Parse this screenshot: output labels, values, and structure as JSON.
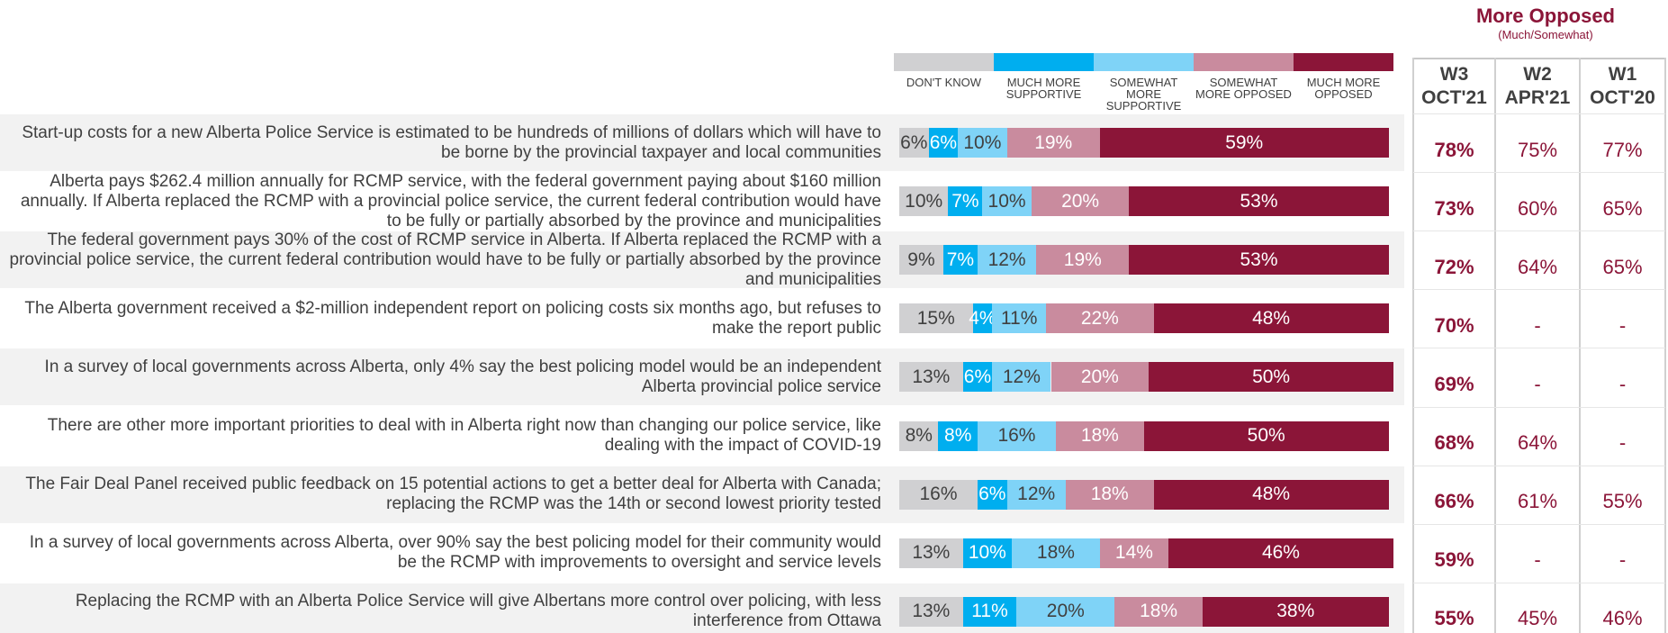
{
  "chart_data": {
    "type": "stacked-bar-horizontal",
    "categories": [
      "Start-up costs for a new Alberta Police Service is estimated to be hundreds of millions of dollars which will have to be borne by the provincial taxpayer and local communities",
      "Alberta pays $262.4 million annually for RCMP service, with the federal government paying about $160 million annually. If Alberta replaced the RCMP with a provincial police service, the current federal contribution would have to be fully or partially absorbed by the province and municipalities",
      "The federal government pays 30% of the cost of RCMP service in Alberta. If Alberta replaced the RCMP with a provincial police service, the current federal contribution would have to be fully or partially absorbed by the province and municipalities",
      "The Alberta government received a $2-million independent report on policing costs six months ago, but refuses to make the report public",
      "In a survey of local governments across Alberta, only 4% say the best policing model would be an independent Alberta provincial police service",
      "There are other more important priorities to deal with in Alberta right now than changing our police service, like dealing with the impact of COVID-19",
      "The Fair Deal Panel received public feedback on 15 potential actions to get a better deal for Alberta with Canada; replacing the RCMP was the 14th or second lowest priority tested",
      "In a survey of local governments across Alberta, over 90% say the best policing model for their community would be the RCMP with improvements to oversight and service levels",
      "Replacing the RCMP with an Alberta Police Service will give Albertans more control over policing, with less interference from Ottawa"
    ],
    "series": [
      {
        "name": "DON'T KNOW",
        "color": "#d0d0d2",
        "label_color": "#404040",
        "values": [
          6,
          10,
          9,
          15,
          13,
          8,
          16,
          13,
          13
        ],
        "value_labels": [
          "6%",
          "10%",
          "9%",
          "15%",
          "13%",
          "8%",
          "16%",
          "13%",
          "13%"
        ]
      },
      {
        "name": "MUCH MORE SUPPORTIVE",
        "color": "#00aeef",
        "label_color": "#ffffff",
        "values": [
          6,
          7,
          7,
          4,
          6,
          8,
          6,
          10,
          11
        ],
        "value_labels": [
          "6%",
          "7%",
          "7%",
          "4%",
          "6%",
          "8%",
          "6%",
          "10%",
          "11%"
        ]
      },
      {
        "name": "SOMEWHAT MORE SUPPORTIVE",
        "color": "#7fd3f7",
        "label_color": "#404040",
        "values": [
          10,
          10,
          12,
          11,
          12,
          16,
          12,
          18,
          20
        ],
        "value_labels": [
          "10%",
          "10%",
          "12%",
          "11%",
          "12%",
          "16%",
          "12%",
          "18%",
          "20%"
        ]
      },
      {
        "name": "SOMEWHAT MORE OPPOSED",
        "color": "#c98b9e",
        "label_color": "#ffffff",
        "values": [
          19,
          20,
          19,
          22,
          20,
          18,
          18,
          14,
          18
        ],
        "value_labels": [
          "19%",
          "20%",
          "19%",
          "22%",
          "20%",
          "18%",
          "18%",
          "14%",
          "18%"
        ]
      },
      {
        "name": "MUCH MORE OPPOSED",
        "color": "#8b1538",
        "label_color": "#ffffff",
        "values": [
          59,
          53,
          53,
          48,
          50,
          50,
          48,
          46,
          38
        ],
        "value_labels": [
          "59%",
          "53%",
          "53%",
          "48%",
          "50%",
          "50%",
          "48%",
          "46%",
          "38%"
        ]
      }
    ]
  },
  "table": {
    "title": "More Opposed",
    "subtitle": "(Much/Somewhat)",
    "headers": [
      {
        "wave": "W3",
        "date": "OCT'21"
      },
      {
        "wave": "W2",
        "date": "APR'21"
      },
      {
        "wave": "W1",
        "date": "OCT'20"
      }
    ],
    "rows": [
      [
        "78%",
        "75%",
        "77%"
      ],
      [
        "73%",
        "60%",
        "65%"
      ],
      [
        "72%",
        "64%",
        "65%"
      ],
      [
        "70%",
        "-",
        "-"
      ],
      [
        "69%",
        "-",
        "-"
      ],
      [
        "68%",
        "64%",
        "-"
      ],
      [
        "66%",
        "61%",
        "55%"
      ],
      [
        "59%",
        "-",
        "-"
      ],
      [
        "55%",
        "45%",
        "46%"
      ]
    ]
  }
}
